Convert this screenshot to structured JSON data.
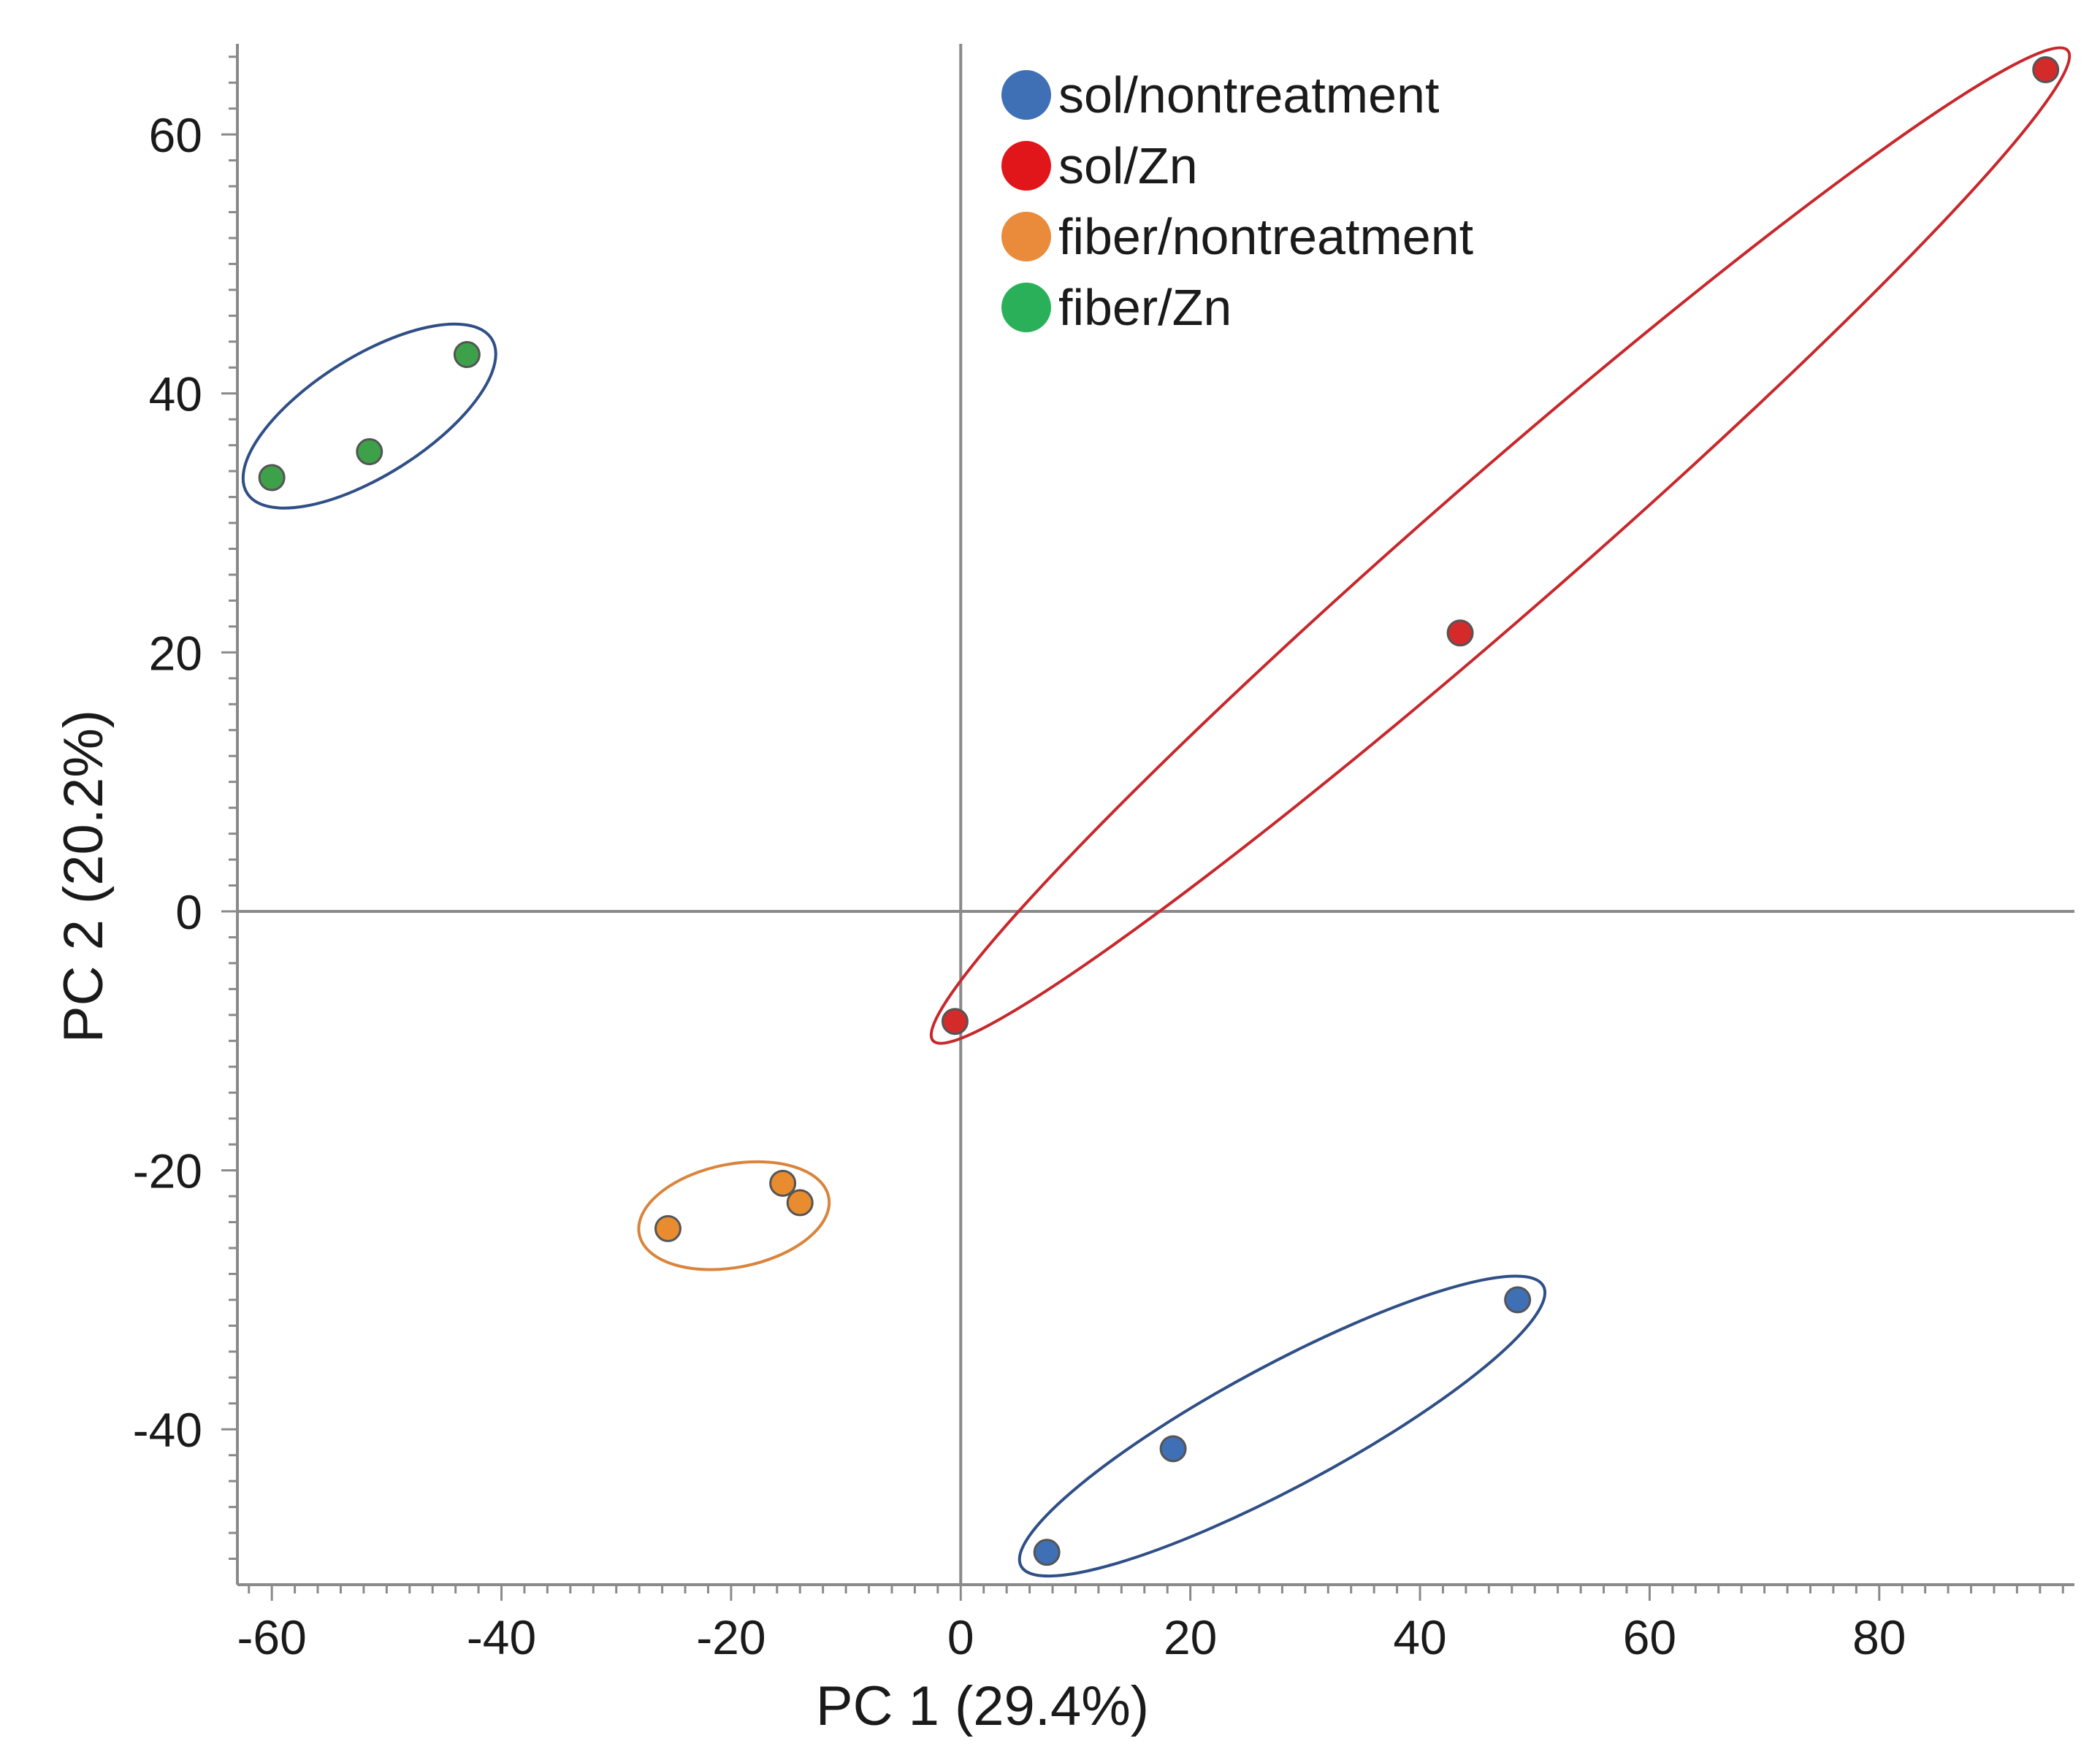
{
  "chart_data": {
    "type": "scatter",
    "title": "",
    "xlabel": "PC 1 (29.4%)",
    "ylabel": "PC 2 (20.2%)",
    "xlim": [
      -63,
      97
    ],
    "ylim": [
      -52,
      67
    ],
    "xticks": [
      -60,
      -40,
      -20,
      0,
      20,
      40,
      60,
      80
    ],
    "yticks": [
      -40,
      -20,
      0,
      20,
      40,
      60
    ],
    "xtick_labels": [
      "-60",
      "-40",
      "-20",
      "0",
      "20",
      "40",
      "60",
      "80"
    ],
    "ytick_labels": [
      "-40",
      "-20",
      "0",
      "20",
      "40",
      "60"
    ],
    "grid": false,
    "zero_lines": true,
    "legend_position": "top-center",
    "series": [
      {
        "name": "sol/nontreatment",
        "color": "#3f6fb5",
        "ellipse_color": "#2f4f86",
        "points": [
          [
            7.5,
            -49.5
          ],
          [
            18.5,
            -41.5
          ],
          [
            48.5,
            -30
          ]
        ]
      },
      {
        "name": "sol/Zn",
        "color": "#d42a2a",
        "ellipse_color": "#c7282c",
        "points": [
          [
            -0.5,
            -8.5
          ],
          [
            43.5,
            21.5
          ],
          [
            94.5,
            65
          ]
        ]
      },
      {
        "name": "fiber/nontreatment",
        "color": "#e98b2f",
        "ellipse_color": "#d9843c",
        "points": [
          [
            -25.5,
            -24.5
          ],
          [
            -15.5,
            -21
          ],
          [
            -14,
            -22.5
          ]
        ]
      },
      {
        "name": "fiber/Zn",
        "color": "#3da14a",
        "ellipse_color": "#2f4f86",
        "points": [
          [
            -60,
            33.5
          ],
          [
            -51.5,
            35.5
          ],
          [
            -43,
            43
          ]
        ]
      }
    ],
    "legend": [
      {
        "label": "sol/nontreatment",
        "color": "#3f6fb5"
      },
      {
        "label": "sol/Zn",
        "color": "#e0161b"
      },
      {
        "label": "fiber/nontreatment",
        "color": "#e98b3a"
      },
      {
        "label": "fiber/Zn",
        "color": "#2bb05a"
      }
    ]
  }
}
